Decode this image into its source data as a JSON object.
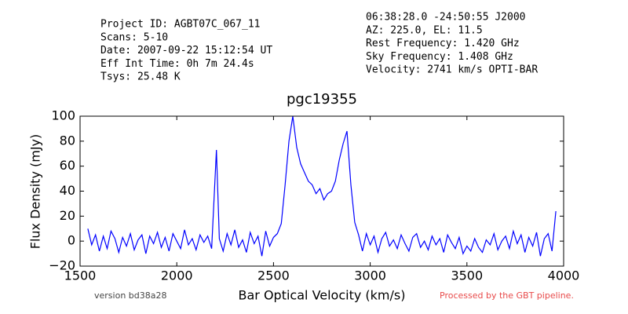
{
  "chart_data": {
    "type": "line",
    "header_left": [
      "Project ID: AGBT07C_067_11",
      "Scans: 5-10",
      "Date: 2007-09-22 15:12:54 UT",
      "Eff Int Time: 0h 7m 24.4s",
      "Tsys: 25.48 K"
    ],
    "header_right": [
      "06:38:28.0 -24:50:55 J2000",
      "AZ: 225.0, EL: 11.5",
      "Rest Frequency:   1.420 GHz",
      "Sky Frequency:    1.408 GHz",
      "Velocity: 2741 km/s OPTI-BAR"
    ],
    "title": "pgc19355",
    "xlabel": "Bar Optical Velocity (km/s)",
    "ylabel": "Flux Density (mJy)",
    "footer_left": "version bd38a28",
    "footer_right": "Processed by the GBT pipeline.",
    "xlim": [
      1500,
      4000
    ],
    "xticks": [
      1500,
      2000,
      2500,
      3000,
      3500,
      4000
    ],
    "ylim": [
      -20,
      100
    ],
    "yticks": [
      {
        "value": -20,
        "label": "−20"
      },
      0,
      20,
      40,
      60,
      80,
      100
    ],
    "x": [
      1540,
      1560,
      1580,
      1600,
      1620,
      1640,
      1660,
      1680,
      1700,
      1720,
      1740,
      1760,
      1780,
      1800,
      1820,
      1840,
      1860,
      1880,
      1900,
      1920,
      1940,
      1960,
      1980,
      2000,
      2020,
      2040,
      2060,
      2080,
      2100,
      2120,
      2140,
      2160,
      2180,
      2205,
      2220,
      2240,
      2260,
      2280,
      2300,
      2320,
      2340,
      2360,
      2380,
      2400,
      2420,
      2440,
      2460,
      2480,
      2500,
      2520,
      2540,
      2560,
      2580,
      2600,
      2620,
      2640,
      2660,
      2680,
      2700,
      2720,
      2740,
      2760,
      2780,
      2800,
      2820,
      2840,
      2860,
      2880,
      2900,
      2920,
      2940,
      2960,
      2980,
      3000,
      3020,
      3040,
      3060,
      3080,
      3100,
      3120,
      3140,
      3160,
      3180,
      3200,
      3220,
      3240,
      3260,
      3280,
      3300,
      3320,
      3340,
      3360,
      3380,
      3400,
      3420,
      3440,
      3460,
      3480,
      3500,
      3520,
      3540,
      3560,
      3580,
      3600,
      3620,
      3640,
      3660,
      3680,
      3700,
      3720,
      3740,
      3760,
      3780,
      3800,
      3820,
      3840,
      3860,
      3880,
      3900,
      3920,
      3940,
      3960
    ],
    "series": [
      {
        "color": "#0000ff",
        "values": [
          10,
          -3,
          5,
          -8,
          4,
          -6,
          8,
          2,
          -9,
          3,
          -4,
          6,
          -7,
          1,
          5,
          -10,
          4,
          -2,
          7,
          -5,
          3,
          -8,
          6,
          0,
          -6,
          9,
          -3,
          2,
          -7,
          5,
          -1,
          4,
          -6,
          73,
          2,
          -8,
          6,
          -3,
          9,
          -5,
          1,
          -9,
          7,
          -2,
          4,
          -12,
          8,
          -4,
          3,
          6,
          14,
          45,
          80,
          100,
          75,
          62,
          55,
          48,
          45,
          38,
          42,
          33,
          38,
          40,
          48,
          65,
          78,
          88,
          45,
          15,
          5,
          -8,
          6,
          -3,
          4,
          -9,
          2,
          7,
          -4,
          1,
          -6,
          5,
          -2,
          -8,
          3,
          6,
          -5,
          0,
          -7,
          4,
          -3,
          2,
          -9,
          5,
          -1,
          -6,
          3,
          -10,
          -4,
          -8,
          2,
          -5,
          -9,
          1,
          -3,
          6,
          -7,
          0,
          4,
          -6,
          8,
          -2,
          5,
          -9,
          3,
          -4,
          7,
          -12,
          2,
          6,
          -8,
          24
        ]
      }
    ]
  }
}
